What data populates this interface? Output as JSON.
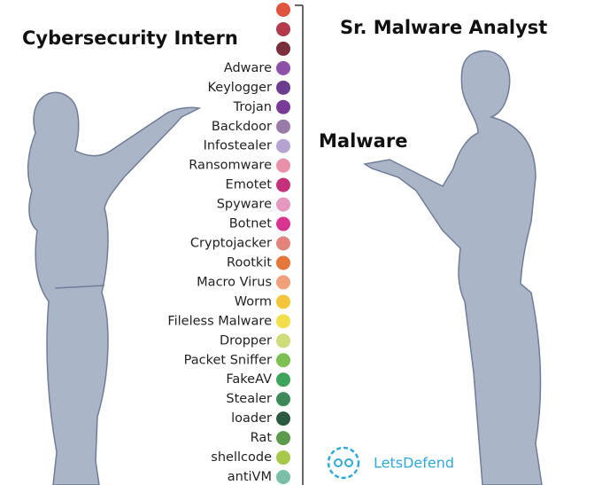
{
  "left_title": "Cybersecurity Intern",
  "right_title": "Sr. Malware Analyst",
  "pointed_label": "Malware",
  "brand": "LetsDefend",
  "items": [
    {
      "label": null,
      "color": "#e0533f"
    },
    {
      "label": null,
      "color": "#b23a4a"
    },
    {
      "label": null,
      "color": "#7a2f3d"
    },
    {
      "label": "Adware",
      "color": "#8e4fa8"
    },
    {
      "label": "Keylogger",
      "color": "#6a3d8f"
    },
    {
      "label": "Trojan",
      "color": "#7a3b96"
    },
    {
      "label": "Backdoor",
      "color": "#9a7aa8"
    },
    {
      "label": "Infostealer",
      "color": "#b7a3d2"
    },
    {
      "label": "Ransomware",
      "color": "#e891a8"
    },
    {
      "label": "Emotet",
      "color": "#c4307a"
    },
    {
      "label": "Spyware",
      "color": "#e49ac0"
    },
    {
      "label": "Botnet",
      "color": "#d8338f"
    },
    {
      "label": "Cryptojacker",
      "color": "#e2847c"
    },
    {
      "label": "Rootkit",
      "color": "#e5773a"
    },
    {
      "label": "Macro Virus",
      "color": "#f0a07a"
    },
    {
      "label": "Worm",
      "color": "#f2c53c"
    },
    {
      "label": "Fileless Malware",
      "color": "#f0df4a"
    },
    {
      "label": "Dropper",
      "color": "#cfdc7a"
    },
    {
      "label": "Packet Sniffer",
      "color": "#7cbf52"
    },
    {
      "label": "FakeAV",
      "color": "#3ca35a"
    },
    {
      "label": "Stealer",
      "color": "#3c8a5a"
    },
    {
      "label": "loader",
      "color": "#2c5a40"
    },
    {
      "label": "Rat",
      "color": "#5a9a4a"
    },
    {
      "label": "shellcode",
      "color": "#a8c84a"
    },
    {
      "label": "antiVM",
      "color": "#7ac0a8"
    }
  ]
}
